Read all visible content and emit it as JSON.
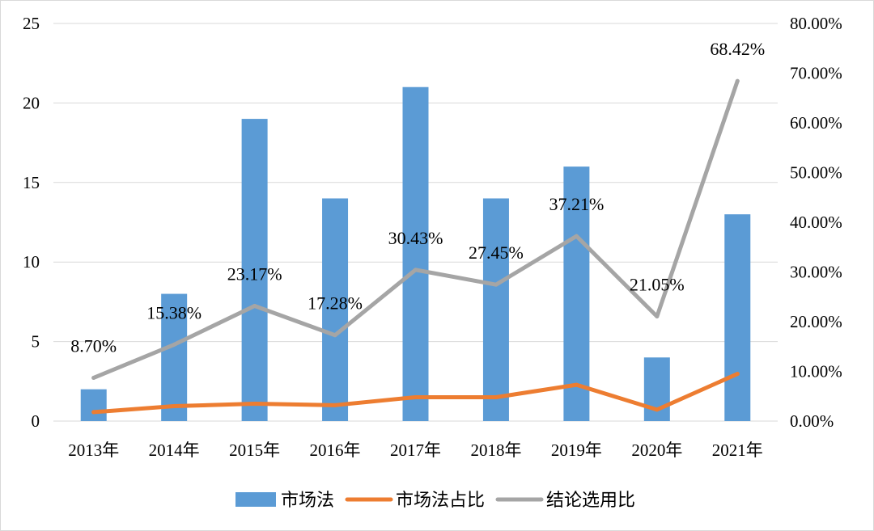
{
  "chart_data": {
    "type": "bar",
    "categories": [
      "2013年",
      "2014年",
      "2015年",
      "2016年",
      "2017年",
      "2018年",
      "2019年",
      "2020年",
      "2021年"
    ],
    "series": [
      {
        "name": "市场法",
        "kind": "bar",
        "axis": "left",
        "color": "#5b9bd5",
        "values": [
          2,
          8,
          19,
          14,
          21,
          14,
          16,
          4,
          13
        ]
      },
      {
        "name": "市场法占比",
        "kind": "line",
        "axis": "right",
        "color": "#ed7d31",
        "values": [
          1.8,
          3.0,
          3.5,
          3.2,
          4.8,
          4.8,
          7.3,
          2.3,
          9.5
        ]
      },
      {
        "name": "结论选用比",
        "kind": "line",
        "axis": "right",
        "color": "#a5a5a5",
        "values": [
          8.7,
          15.38,
          23.17,
          17.28,
          30.43,
          27.45,
          37.21,
          21.05,
          68.42
        ],
        "labels": [
          "8.70%",
          "15.38%",
          "23.17%",
          "17.28%",
          "30.43%",
          "27.45%",
          "37.21%",
          "21.05%",
          "68.42%"
        ]
      }
    ],
    "left_axis": {
      "ylim": [
        0,
        25
      ],
      "ticks": [
        "0",
        "5",
        "10",
        "15",
        "20",
        "25"
      ]
    },
    "right_axis": {
      "ylim": [
        0,
        80
      ],
      "ticks": [
        "0.00%",
        "10.00%",
        "20.00%",
        "30.00%",
        "40.00%",
        "50.00%",
        "60.00%",
        "70.00%",
        "80.00%"
      ]
    },
    "grid": true,
    "legend_position": "bottom"
  }
}
